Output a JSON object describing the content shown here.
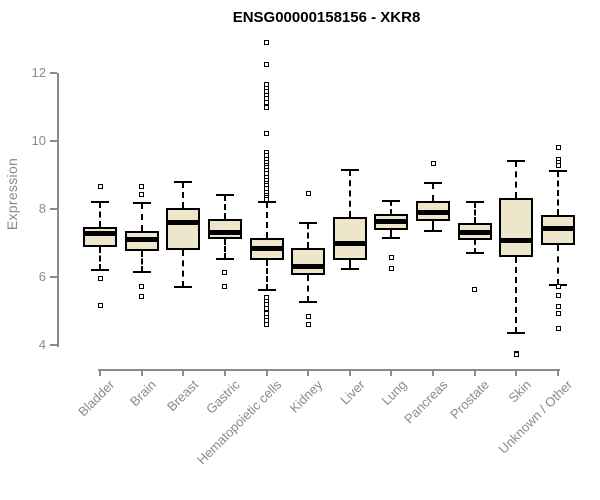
{
  "chart_data": {
    "type": "boxplot",
    "title": "ENSG00000158156 - XKR8",
    "ylabel": "Expression",
    "xlabel": "",
    "ylim": [
      4,
      12
    ],
    "yticks": [
      4,
      6,
      8,
      10,
      12
    ],
    "grid": false,
    "legend": false,
    "categories": [
      "Bladder",
      "Brain",
      "Breast",
      "Gastric",
      "Hematopoietic cells",
      "Kidney",
      "Liver",
      "Lung",
      "Pancreas",
      "Prostate",
      "Skin",
      "Unknown / Other"
    ],
    "boxes": [
      {
        "category": "Bladder",
        "whisker_low": 6.21,
        "q1": 6.88,
        "median": 7.29,
        "q3": 7.47,
        "whisker_high": 8.21,
        "outliers": [
          8.65,
          5.97,
          5.15
        ]
      },
      {
        "category": "Brain",
        "whisker_low": 6.15,
        "q1": 6.76,
        "median": 7.09,
        "q3": 7.35,
        "whisker_high": 8.18,
        "outliers": [
          8.65,
          8.44,
          5.71,
          5.44
        ]
      },
      {
        "category": "Breast",
        "whisker_low": 5.71,
        "q1": 6.79,
        "median": 7.59,
        "q3": 8.03,
        "whisker_high": 8.79,
        "outliers": []
      },
      {
        "category": "Gastric",
        "whisker_low": 6.53,
        "q1": 7.12,
        "median": 7.32,
        "q3": 7.71,
        "whisker_high": 8.41,
        "outliers": [
          6.12,
          5.71
        ]
      },
      {
        "category": "Hematopoietic cells",
        "whisker_low": 5.62,
        "q1": 6.5,
        "median": 6.85,
        "q3": 7.15,
        "whisker_high": 8.21,
        "outliers": [
          12.91,
          12.24,
          11.65,
          11.55,
          11.45,
          11.35,
          11.24,
          11.12,
          11.0,
          10.21,
          9.65,
          9.56,
          9.47,
          9.38,
          9.29,
          9.21,
          9.12,
          9.03,
          8.94,
          8.85,
          8.76,
          8.68,
          8.59,
          8.5,
          8.41,
          8.35,
          8.29,
          5.41,
          5.29,
          5.18,
          5.06,
          4.94,
          4.82,
          4.71,
          4.59
        ]
      },
      {
        "category": "Kidney",
        "whisker_low": 5.26,
        "q1": 6.06,
        "median": 6.32,
        "q3": 6.85,
        "whisker_high": 7.59,
        "outliers": [
          8.47,
          4.85,
          4.59
        ]
      },
      {
        "category": "Liver",
        "whisker_low": 6.24,
        "q1": 6.5,
        "median": 7.0,
        "q3": 7.76,
        "whisker_high": 9.15,
        "outliers": []
      },
      {
        "category": "Lung",
        "whisker_low": 7.15,
        "q1": 7.38,
        "median": 7.62,
        "q3": 7.85,
        "whisker_high": 8.24,
        "outliers": [
          6.56,
          6.26
        ]
      },
      {
        "category": "Pancreas",
        "whisker_low": 7.35,
        "q1": 7.65,
        "median": 7.9,
        "q3": 8.24,
        "whisker_high": 8.76,
        "outliers": [
          9.35
        ]
      },
      {
        "category": "Prostate",
        "whisker_low": 6.71,
        "q1": 7.09,
        "median": 7.32,
        "q3": 7.59,
        "whisker_high": 8.21,
        "outliers": [
          5.62
        ]
      },
      {
        "category": "Skin",
        "whisker_low": 4.35,
        "q1": 6.59,
        "median": 7.06,
        "q3": 8.32,
        "whisker_high": 9.41,
        "outliers": [
          3.76,
          3.71
        ]
      },
      {
        "category": "Unknown / Other",
        "whisker_low": 5.76,
        "q1": 6.94,
        "median": 7.44,
        "q3": 7.82,
        "whisker_high": 9.12,
        "outliers": [
          9.82,
          9.47,
          9.38,
          9.29,
          5.72,
          5.47,
          5.12,
          4.94,
          4.48
        ]
      }
    ],
    "colors": {
      "box_fill": "#EDE6CB",
      "box_border": "#000000",
      "median": "#000000",
      "whisker": "#000000",
      "axis": "#8A8A8A",
      "title": "#000000"
    }
  }
}
